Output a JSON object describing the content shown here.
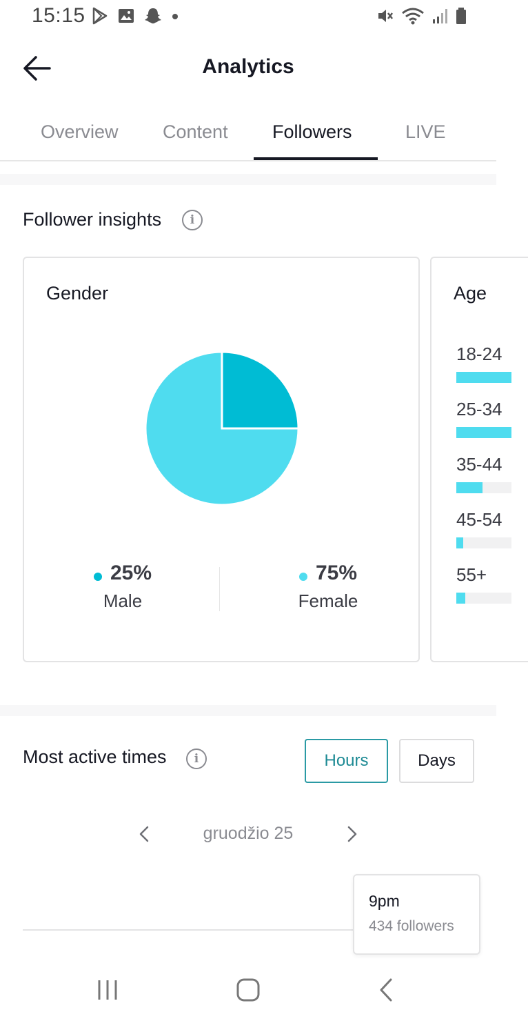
{
  "status_bar": {
    "time": "15:15"
  },
  "header": {
    "title": "Analytics"
  },
  "tabs": [
    {
      "label": "Overview"
    },
    {
      "label": "Content"
    },
    {
      "label": "Followers",
      "active": true
    },
    {
      "label": "LIVE"
    }
  ],
  "follower_insights": {
    "title": "Follower insights",
    "gender": {
      "title": "Gender",
      "male": {
        "percent": "25%",
        "label": "Male",
        "value": 25,
        "color": "#00bcd4"
      },
      "female": {
        "percent": "75%",
        "label": "Female",
        "value": 75,
        "color": "#4fdcef"
      }
    },
    "age": {
      "title": "Age",
      "groups": [
        {
          "label": "18-24",
          "fill": 1.0
        },
        {
          "label": "25-34",
          "fill": 1.0
        },
        {
          "label": "35-44",
          "fill": 0.48
        },
        {
          "label": "45-54",
          "fill": 0.12
        },
        {
          "label": "55+",
          "fill": 0.16
        }
      ]
    }
  },
  "most_active": {
    "title": "Most active times",
    "hours_label": "Hours",
    "days_label": "Days",
    "date_label": "gruodžio 25",
    "tooltip": {
      "time": "9pm",
      "followers": "434 followers"
    }
  },
  "colors": {
    "accent": "#4fdcef",
    "accent_dark": "#00bcd4",
    "toggle_selected": "#1d8a94"
  }
}
